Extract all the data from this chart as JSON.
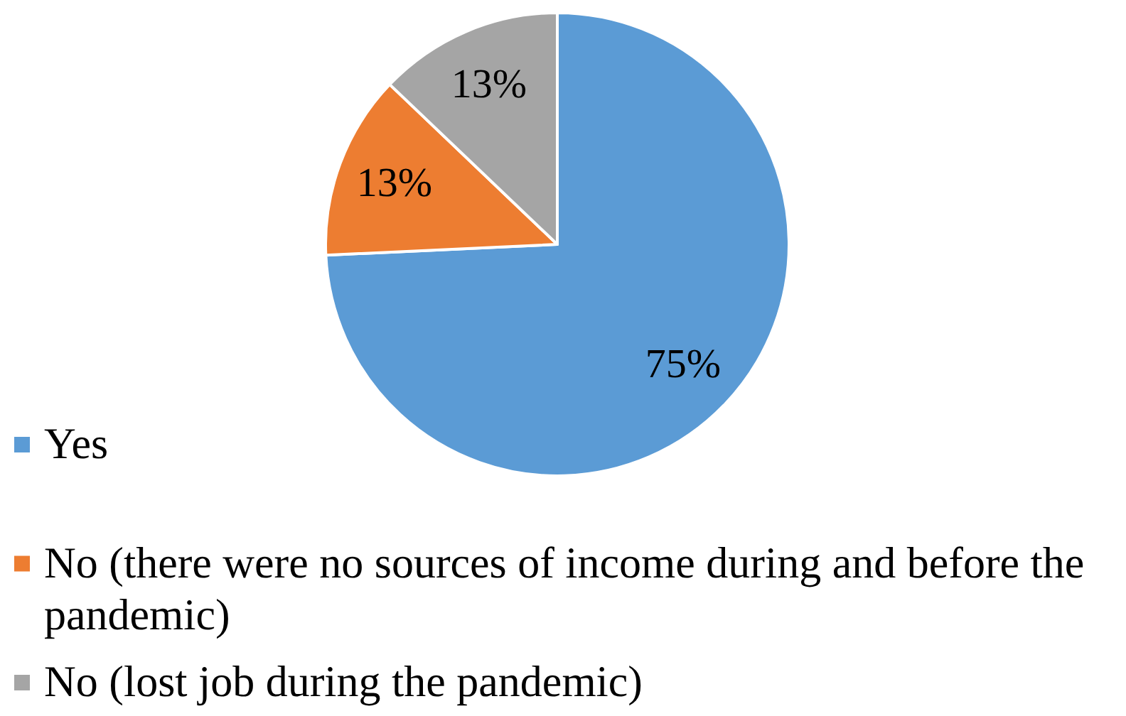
{
  "chart_data": {
    "type": "pie",
    "categories": [
      "Yes",
      "No (there were no sources of income during and before the pandemic)",
      "No (lost job during the pandemic)"
    ],
    "values": [
      75,
      13,
      13
    ],
    "colors": [
      "#5b9bd5",
      "#ed7d31",
      "#a5a5a5"
    ],
    "value_labels": [
      "75%",
      "13%",
      "13%"
    ],
    "legend": "bottom"
  }
}
